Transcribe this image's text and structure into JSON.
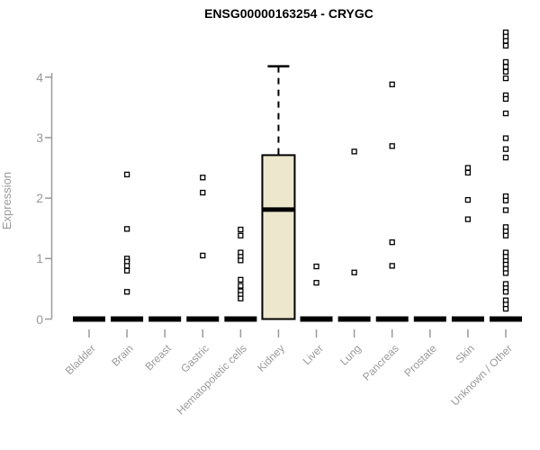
{
  "chart_data": {
    "type": "boxplot",
    "title": "ENSG00000163254 - CRYGC",
    "ylabel": "Expression",
    "ylim": [
      0,
      4.8
    ],
    "yticks": [
      0,
      1,
      2,
      3,
      4
    ],
    "grid": "off",
    "legend": "none",
    "categories": [
      "Bladder",
      "Brain",
      "Breast",
      "Gastric",
      "Hematopoietic cells",
      "Kidney",
      "Liver",
      "Lung",
      "Pancreas",
      "Prostate",
      "Skin",
      "Unknown / Other"
    ],
    "boxes": [
      {
        "category": "Bladder",
        "q1": 0,
        "median": 0,
        "q3": 0,
        "whisker_low": 0,
        "whisker_high": 0,
        "outliers": []
      },
      {
        "category": "Brain",
        "q1": 0,
        "median": 0,
        "q3": 0,
        "whisker_low": 0,
        "whisker_high": 0,
        "outliers": [
          2.39,
          1.49,
          1.0,
          0.95,
          0.88,
          0.8,
          0.45
        ]
      },
      {
        "category": "Breast",
        "q1": 0,
        "median": 0,
        "q3": 0,
        "whisker_low": 0,
        "whisker_high": 0,
        "outliers": []
      },
      {
        "category": "Gastric",
        "q1": 0,
        "median": 0,
        "q3": 0,
        "whisker_low": 0,
        "whisker_high": 0,
        "outliers": [
          2.34,
          2.09,
          1.05
        ]
      },
      {
        "category": "Hematopoietic cells",
        "q1": 0,
        "median": 0,
        "q3": 0,
        "whisker_low": 0,
        "whisker_high": 0,
        "outliers": [
          1.48,
          1.38,
          1.1,
          1.03,
          0.97,
          0.65,
          0.55,
          0.46,
          0.4,
          0.34
        ]
      },
      {
        "category": "Kidney",
        "q1": 0,
        "median": 1.81,
        "q3": 2.71,
        "whisker_low": 0,
        "whisker_high": 4.18,
        "outliers": []
      },
      {
        "category": "Liver",
        "q1": 0,
        "median": 0,
        "q3": 0,
        "whisker_low": 0,
        "whisker_high": 0,
        "outliers": [
          0.87,
          0.6
        ]
      },
      {
        "category": "Lung",
        "q1": 0,
        "median": 0,
        "q3": 0,
        "whisker_low": 0,
        "whisker_high": 0,
        "outliers": [
          2.77,
          0.77
        ]
      },
      {
        "category": "Pancreas",
        "q1": 0,
        "median": 0,
        "q3": 0,
        "whisker_low": 0,
        "whisker_high": 0,
        "outliers": [
          3.88,
          2.86,
          1.27,
          0.88
        ]
      },
      {
        "category": "Prostate",
        "q1": 0,
        "median": 0,
        "q3": 0,
        "whisker_low": 0,
        "whisker_high": 0,
        "outliers": []
      },
      {
        "category": "Skin",
        "q1": 0,
        "median": 0,
        "q3": 0,
        "whisker_low": 0,
        "whisker_high": 0,
        "outliers": [
          2.5,
          2.42,
          1.97,
          1.65
        ]
      },
      {
        "category": "Unknown / Other",
        "q1": 0,
        "median": 0,
        "q3": 0,
        "whisker_low": 0,
        "whisker_high": 0,
        "outliers": [
          4.74,
          4.67,
          4.6,
          4.52,
          4.25,
          4.17,
          4.09,
          3.98,
          3.7,
          3.64,
          3.4,
          2.99,
          2.81,
          2.67,
          2.03,
          1.96,
          1.8,
          1.52,
          1.45,
          1.38,
          1.1,
          1.03,
          0.96,
          0.9,
          0.83,
          0.76,
          0.58,
          0.51,
          0.45,
          0.31,
          0.24,
          0.17
        ]
      }
    ],
    "colors": {
      "box_fill": "#ece7cd",
      "box_border": "#000000",
      "median": "#000000",
      "outlier": "#000000",
      "axis": "#9a9a9a",
      "text": "#999999",
      "title": "#000000",
      "background": "#ffffff"
    }
  }
}
